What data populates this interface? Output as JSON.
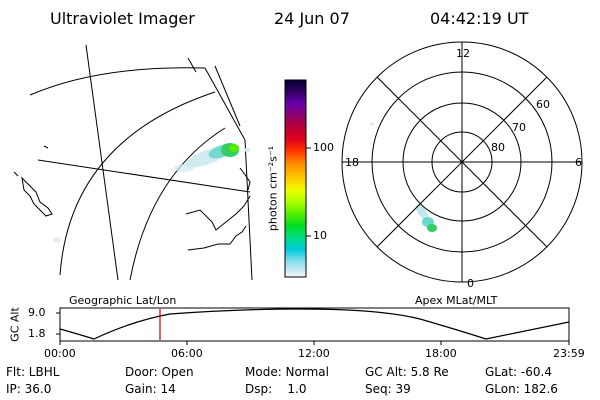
{
  "header": {
    "title": "Ultraviolet Imager",
    "date": "24 Jun 07",
    "time": "04:42:19 UT"
  },
  "geo_map": {
    "label": "Geographic Lat/Lon"
  },
  "colorbar": {
    "unit_label": "photon cm⁻²s⁻¹",
    "ticks": [
      "100",
      "10"
    ],
    "colors": [
      "#000033",
      "#330066",
      "#6600aa",
      "#aa0044",
      "#e0001a",
      "#ff3300",
      "#ff8800",
      "#ffcc00",
      "#eeff00",
      "#aaff00",
      "#55ee00",
      "#00dd22",
      "#00dd88",
      "#00ccdd",
      "#88ddee",
      "#ccecf2",
      "#f4f8fa"
    ]
  },
  "polar_plot": {
    "label": "Apex MLat/MLT",
    "mlt_labels": {
      "top": "12",
      "left": "18",
      "right": "6",
      "bottom": "0"
    },
    "lat_labels": [
      "60",
      "70",
      "80"
    ]
  },
  "altitude_plot": {
    "axis_title": "GC Alt",
    "y_ticks": [
      "9.0",
      "1.8"
    ],
    "x_ticks": [
      "00:00",
      "06:00",
      "12:00",
      "18:00",
      "23:59"
    ],
    "marker_color": "#cc0000"
  },
  "info": {
    "row1": {
      "flt": "Flt: LBHL",
      "door": "Door: Open",
      "mode": "Mode: Normal",
      "gcalt": "GC Alt: 5.8 Re",
      "glat": "GLat: -60.4"
    },
    "row2": {
      "ip": "IP: 36.0",
      "gain": "Gain: 14",
      "dsp": "Dsp:    1.0",
      "seq": "Seq: 39",
      "glon": "GLon: 182.6"
    }
  }
}
